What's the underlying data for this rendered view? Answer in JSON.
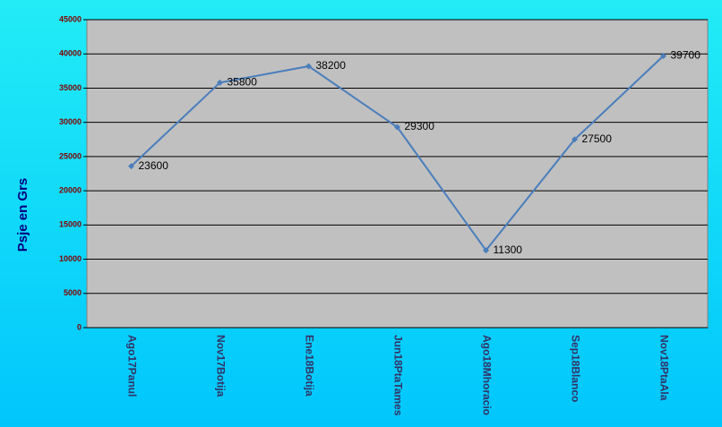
{
  "chart_data": {
    "type": "line",
    "y_label": "Psje en Grs",
    "categories": [
      "Ago17Panul",
      "Nov17Botija",
      "Ene18Botija",
      "Jun18PtaTames",
      "Ago18Mhoracio",
      "Sep18Blanco",
      "Nov18PtaAla"
    ],
    "series": [
      {
        "name": "Psje",
        "color": "#4a7ebb",
        "values": [
          23600,
          35800,
          38200,
          29300,
          11300,
          27500,
          39700
        ]
      }
    ],
    "ylim": [
      0,
      45000
    ],
    "yticks": [
      0,
      5000,
      10000,
      15000,
      20000,
      25000,
      30000,
      35000,
      40000,
      45000
    ],
    "grid": true,
    "data_labels": true
  }
}
